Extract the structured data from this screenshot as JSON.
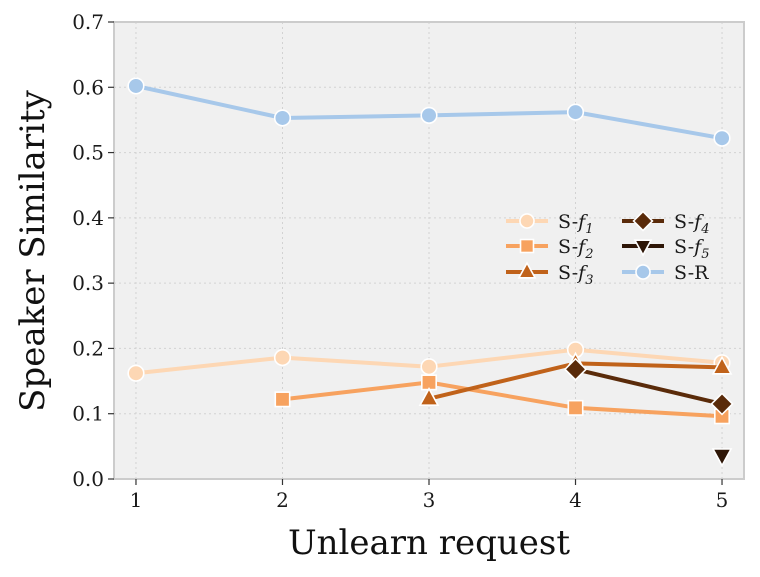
{
  "chart_data": {
    "type": "line",
    "xlabel": "Unlearn request",
    "ylabel": "Speaker Similarity",
    "x": [
      1,
      2,
      3,
      4,
      5
    ],
    "xlim": [
      0.85,
      5.15
    ],
    "ylim": [
      0.0,
      0.7
    ],
    "yticks": [
      "0.0",
      "0.1",
      "0.2",
      "0.3",
      "0.4",
      "0.5",
      "0.6",
      "0.7"
    ],
    "xticks": [
      "1",
      "2",
      "3",
      "4",
      "5"
    ],
    "grid": true,
    "legend_position": "center-right",
    "series": [
      {
        "name": "S-f1",
        "label_prefix": "S-",
        "label_italic": "f",
        "label_sub": "1",
        "color": "#fdd7b4",
        "marker": "circle",
        "points": [
          [
            1,
            0.162
          ],
          [
            2,
            0.186
          ],
          [
            3,
            0.172
          ],
          [
            4,
            0.198
          ],
          [
            5,
            0.178
          ]
        ]
      },
      {
        "name": "S-f2",
        "label_prefix": "S-",
        "label_italic": "f",
        "label_sub": "2",
        "color": "#f7a25f",
        "marker": "square",
        "points": [
          [
            2,
            0.122
          ],
          [
            3,
            0.148
          ],
          [
            4,
            0.109
          ],
          [
            5,
            0.096
          ]
        ]
      },
      {
        "name": "S-f3",
        "label_prefix": "S-",
        "label_italic": "f",
        "label_sub": "3",
        "color": "#c0621a",
        "marker": "triangle-up",
        "points": [
          [
            3,
            0.123
          ],
          [
            4,
            0.177
          ],
          [
            5,
            0.171
          ]
        ]
      },
      {
        "name": "S-f4",
        "label_prefix": "S-",
        "label_italic": "f",
        "label_sub": "4",
        "color": "#5a2b0a",
        "marker": "diamond",
        "points": [
          [
            4,
            0.168
          ],
          [
            5,
            0.115
          ]
        ]
      },
      {
        "name": "S-f5",
        "label_prefix": "S-",
        "label_italic": "f",
        "label_sub": "5",
        "color": "#2e1607",
        "marker": "triangle-down",
        "points": [
          [
            5,
            0.036
          ]
        ]
      },
      {
        "name": "S-R",
        "label_prefix": "S-R",
        "label_italic": "",
        "label_sub": "",
        "color": "#a7c8ea",
        "marker": "circle",
        "points": [
          [
            1,
            0.602
          ],
          [
            2,
            0.553
          ],
          [
            3,
            0.557
          ],
          [
            4,
            0.562
          ],
          [
            5,
            0.522
          ]
        ]
      }
    ]
  },
  "colors": {
    "plot_background": "#f0f0f0",
    "grid": "#d2d2d2",
    "frame": "#cccccc"
  }
}
